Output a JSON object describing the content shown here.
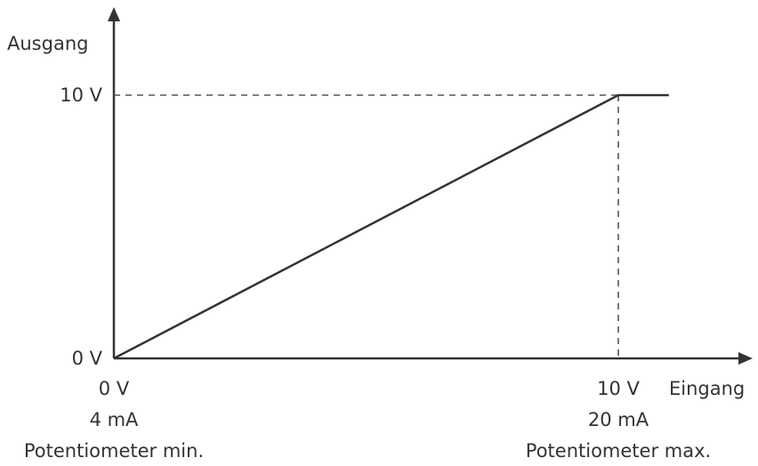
{
  "chart_data": {
    "type": "line",
    "title": "",
    "xlabel": "Eingang",
    "ylabel": "Ausgang",
    "xlim": [
      0,
      11
    ],
    "ylim": [
      0,
      10
    ],
    "series": [
      {
        "x": [
          0,
          10,
          11
        ],
        "y": [
          0,
          10,
          10
        ]
      }
    ],
    "reference_lines": [
      {
        "orientation": "horizontal",
        "value": 10,
        "style": "dashed"
      },
      {
        "orientation": "vertical",
        "value": 10,
        "style": "dashed"
      }
    ],
    "y_ticks": [
      {
        "value": 0,
        "label": "0 V"
      },
      {
        "value": 10,
        "label": "10 V"
      }
    ],
    "x_ticks": [
      {
        "value": 0,
        "lines": [
          "0 V",
          "4 mA",
          "Potentiometer min."
        ]
      },
      {
        "value": 10,
        "lines": [
          "10 V",
          "20 mA",
          "Potentiometer max."
        ]
      }
    ],
    "grid": false,
    "colors": {
      "line": "#333333",
      "axis": "#333333",
      "dashed": "#555555"
    }
  }
}
